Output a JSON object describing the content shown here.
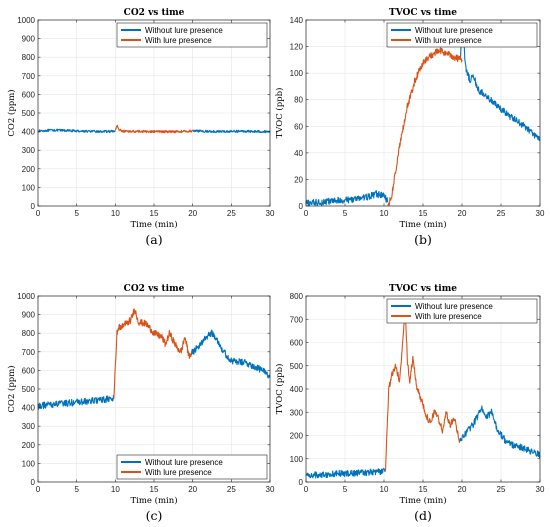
{
  "chart_data": [
    {
      "type": "line",
      "panel_label": "(a)",
      "title": "CO2 vs time",
      "xlabel": "Time (min)",
      "ylabel": "CO2 (ppm)",
      "xlim": [
        0,
        30
      ],
      "ylim": [
        0,
        1000
      ],
      "xticks": [
        "0",
        "5",
        "10",
        "15",
        "20",
        "25",
        "30"
      ],
      "yticks": [
        "0",
        "100",
        "200",
        "300",
        "400",
        "500",
        "600",
        "700",
        "800",
        "900",
        "1000"
      ],
      "grid": true,
      "legend_position": "top-right",
      "series": [
        {
          "name": "Without lure presence",
          "color": "#0072BD",
          "segments": [
            {
              "x": [
                0,
                2,
                4,
                6,
                8,
                10
              ],
              "y": [
                403,
                408,
                405,
                402,
                400,
                402
              ]
            },
            {
              "x": [
                20,
                22,
                24,
                26,
                28,
                30
              ],
              "y": [
                403,
                401,
                400,
                402,
                401,
                400
              ]
            }
          ]
        },
        {
          "name": "With lure presence",
          "color": "#D95319",
          "segments": [
            {
              "x": [
                10,
                10.2,
                10.5,
                11,
                13,
                15,
                17,
                19,
                20
              ],
              "y": [
                405,
                435,
                410,
                402,
                401,
                400,
                400,
                401,
                403
              ]
            }
          ]
        }
      ]
    },
    {
      "type": "line",
      "panel_label": "(b)",
      "title": "TVOC vs time",
      "xlabel": "Time (min)",
      "ylabel": "TVOC (ppb)",
      "xlim": [
        0,
        30
      ],
      "ylim": [
        0,
        140
      ],
      "xticks": [
        "0",
        "5",
        "10",
        "15",
        "20",
        "25",
        "30"
      ],
      "yticks": [
        "0",
        "20",
        "40",
        "60",
        "80",
        "100",
        "120",
        "140"
      ],
      "grid": true,
      "legend_position": "top-right",
      "series": [
        {
          "name": "Without lure presence",
          "color": "#0072BD",
          "segments": [
            {
              "x": [
                0,
                2,
                4,
                6,
                8,
                9,
                10,
                10.5
              ],
              "y": [
                2,
                3,
                4,
                5,
                7,
                9,
                8,
                3
              ]
            },
            {
              "x": [
                19.8,
                20,
                20.5,
                21,
                21.5,
                22,
                24,
                26,
                28,
                30
              ],
              "y": [
                110,
                138,
                103,
                95,
                98,
                88,
                78,
                68,
                60,
                50
              ]
            }
          ]
        },
        {
          "name": "With lure presence",
          "color": "#D95319",
          "segments": [
            {
              "x": [
                10.5,
                11,
                12,
                13,
                14,
                15,
                16,
                17,
                18,
                19,
                20
              ],
              "y": [
                0,
                8,
                45,
                75,
                95,
                108,
                113,
                117,
                115,
                112,
                110
              ]
            }
          ]
        }
      ]
    },
    {
      "type": "line",
      "panel_label": "(c)",
      "title": "CO2 vs time",
      "xlabel": "Time (min)",
      "ylabel": "CO2 (ppm)",
      "xlim": [
        0,
        30
      ],
      "ylim": [
        0,
        1000
      ],
      "xticks": [
        "0",
        "5",
        "10",
        "15",
        "20",
        "25",
        "30"
      ],
      "yticks": [
        "0",
        "100",
        "200",
        "300",
        "400",
        "500",
        "600",
        "700",
        "800",
        "900",
        "1000"
      ],
      "grid": true,
      "legend_position": "bottom-right",
      "series": [
        {
          "name": "Without lure presence",
          "color": "#0072BD",
          "segments": [
            {
              "x": [
                0,
                2,
                4,
                6,
                8,
                9.8
              ],
              "y": [
                408,
                418,
                425,
                432,
                440,
                448
              ]
            },
            {
              "x": [
                19.8,
                21,
                22,
                22.5,
                23,
                24,
                25,
                27,
                29,
                30
              ],
              "y": [
                690,
                740,
                790,
                800,
                780,
                700,
                650,
                640,
                600,
                570
              ]
            }
          ]
        },
        {
          "name": "With lure presence",
          "color": "#D95319",
          "segments": [
            {
              "x": [
                9.8,
                10.2,
                10.5,
                11,
                12,
                12.5,
                13,
                14,
                15,
                16,
                16.5,
                17,
                17.5,
                18,
                18.5,
                19,
                19.5,
                19.8
              ],
              "y": [
                448,
                800,
                830,
                840,
                870,
                930,
                860,
                850,
                800,
                780,
                740,
                800,
                760,
                720,
                700,
                780,
                680,
                690
              ]
            }
          ]
        }
      ]
    },
    {
      "type": "line",
      "panel_label": "(d)",
      "title": "TVOC vs time",
      "xlabel": "Time (min)",
      "ylabel": "TVOC (ppb)",
      "xlim": [
        0,
        30
      ],
      "ylim": [
        0,
        800
      ],
      "xticks": [
        "0",
        "5",
        "10",
        "15",
        "20",
        "25",
        "30"
      ],
      "yticks": [
        "0",
        "100",
        "200",
        "300",
        "400",
        "500",
        "600",
        "700",
        "800"
      ],
      "grid": true,
      "legend_position": "top-right",
      "series": [
        {
          "name": "Without lure presence",
          "color": "#0072BD",
          "segments": [
            {
              "x": [
                0,
                2,
                4,
                6,
                8,
                9.5,
                10.2
              ],
              "y": [
                28,
                32,
                36,
                38,
                42,
                45,
                48
              ]
            },
            {
              "x": [
                19.7,
                20.5,
                21.5,
                22.5,
                23.2,
                23.8,
                24.5,
                25.5,
                26.5,
                27.5,
                28.5,
                30
              ],
              "y": [
                175,
                210,
                250,
                320,
                280,
                300,
                230,
                180,
                160,
                150,
                135,
                115
              ]
            }
          ]
        },
        {
          "name": "With lure presence",
          "color": "#D95319",
          "segments": [
            {
              "x": [
                10.2,
                10.6,
                11,
                11.5,
                12,
                12.4,
                12.7,
                13,
                13.3,
                13.7,
                14.2,
                15,
                15.5,
                16,
                16.5,
                17,
                17.5,
                18,
                18.5,
                19,
                19.7
              ],
              "y": [
                48,
                400,
                460,
                500,
                430,
                600,
                770,
                520,
                430,
                530,
                410,
                330,
                280,
                250,
                310,
                270,
                220,
                300,
                240,
                280,
                175
              ]
            }
          ]
        }
      ]
    }
  ]
}
